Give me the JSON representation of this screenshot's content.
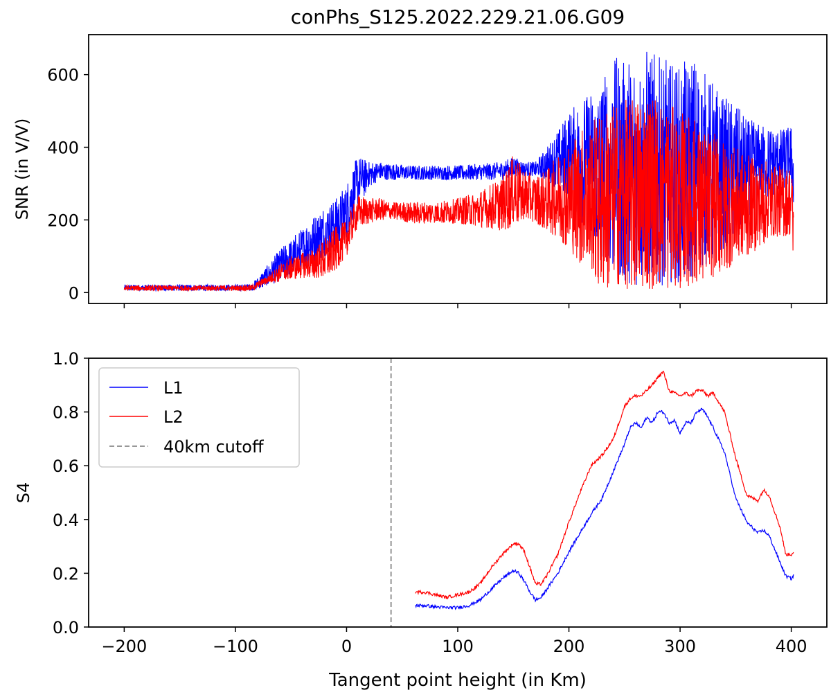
{
  "figure": {
    "title": "conPhs_S125.2022.229.21.06.G09"
  },
  "chart_data": [
    {
      "type": "line",
      "name": "snr-panel",
      "ylabel": "SNR (in V/V)",
      "xlabel": "",
      "xlim": [
        -232,
        432
      ],
      "ylim": [
        -30,
        710
      ],
      "xticks": [
        -200,
        -100,
        0,
        100,
        200,
        300,
        400
      ],
      "show_x_tick_labels": false,
      "yticks": [
        0,
        200,
        400,
        600
      ],
      "ytick_labels": [
        "0",
        "200",
        "400",
        "600"
      ],
      "grid": false,
      "series": [
        {
          "name": "L1",
          "color": "#0000ff",
          "envelope": {
            "x": [
              -200,
              -150,
              -100,
              -85,
              -78,
              -70,
              -60,
              -50,
              -40,
              -30,
              -20,
              -10,
              0,
              10,
              20,
              30,
              40,
              60,
              80,
              100,
              120,
              140,
              150,
              160,
              170,
              180,
              190,
              200,
              210,
              220,
              230,
              240,
              250,
              260,
              270,
              280,
              290,
              300,
              310,
              320,
              330,
              340,
              350,
              360,
              370,
              380,
              390,
              400,
              402
            ],
            "low": [
              5,
              5,
              5,
              5,
              10,
              20,
              30,
              40,
              60,
              80,
              100,
              120,
              150,
              230,
              290,
              310,
              310,
              310,
              310,
              310,
              310,
              310,
              320,
              320,
              320,
              310,
              280,
              250,
              200,
              150,
              100,
              60,
              30,
              20,
              20,
              20,
              20,
              30,
              40,
              60,
              80,
              120,
              160,
              200,
              240,
              260,
              280,
              300,
              200
            ],
            "high": [
              22,
              22,
              22,
              25,
              50,
              80,
              120,
              150,
              180,
              210,
              240,
              260,
              300,
              380,
              360,
              360,
              355,
              350,
              350,
              350,
              355,
              360,
              375,
              360,
              360,
              400,
              450,
              500,
              530,
              560,
              600,
              650,
              640,
              660,
              680,
              650,
              640,
              620,
              660,
              620,
              580,
              540,
              520,
              480,
              470,
              460,
              450,
              460,
              400
            ]
          }
        },
        {
          "name": "L2",
          "color": "#ff0000",
          "envelope": {
            "x": [
              -200,
              -150,
              -100,
              -85,
              -78,
              -70,
              -60,
              -50,
              -40,
              -30,
              -20,
              -10,
              0,
              10,
              20,
              30,
              40,
              60,
              80,
              100,
              120,
              140,
              150,
              160,
              170,
              180,
              190,
              200,
              210,
              220,
              230,
              240,
              250,
              260,
              270,
              280,
              290,
              300,
              310,
              320,
              330,
              340,
              350,
              360,
              370,
              380,
              390,
              400,
              402
            ],
            "low": [
              5,
              5,
              5,
              5,
              15,
              25,
              30,
              35,
              40,
              40,
              40,
              60,
              100,
              180,
              190,
              200,
              200,
              190,
              190,
              190,
              180,
              170,
              180,
              200,
              190,
              170,
              150,
              120,
              80,
              40,
              10,
              10,
              10,
              10,
              10,
              10,
              10,
              10,
              20,
              30,
              40,
              60,
              80,
              100,
              120,
              140,
              150,
              160,
              60
            ],
            "high": [
              20,
              20,
              20,
              22,
              35,
              50,
              80,
              100,
              110,
              120,
              150,
              180,
              200,
              270,
              260,
              260,
              250,
              250,
              250,
              260,
              280,
              320,
              380,
              340,
              320,
              340,
              380,
              420,
              450,
              480,
              500,
              520,
              530,
              540,
              560,
              540,
              520,
              500,
              490,
              460,
              440,
              420,
              400,
              380,
              370,
              360,
              350,
              350,
              300
            ]
          }
        }
      ]
    },
    {
      "type": "line",
      "name": "s4-panel",
      "ylabel": "S4",
      "xlabel": "Tangent point height (in Km)",
      "xlim": [
        -232,
        432
      ],
      "ylim": [
        0.0,
        1.0
      ],
      "xticks": [
        -200,
        -100,
        0,
        100,
        200,
        300,
        400
      ],
      "xtick_labels": [
        "−200",
        "−100",
        "0",
        "100",
        "200",
        "300",
        "400"
      ],
      "yticks": [
        0.0,
        0.2,
        0.4,
        0.6,
        0.8,
        1.0
      ],
      "ytick_labels": [
        "0.0",
        "0.2",
        "0.4",
        "0.6",
        "0.8",
        "1.0"
      ],
      "grid": false,
      "legend": {
        "placement": "top-left",
        "entries": [
          "L1",
          "L2",
          "40km cutoff"
        ]
      },
      "vline": {
        "x": 40,
        "label": "40km cutoff",
        "color": "#777777",
        "style": "dashed"
      },
      "series": [
        {
          "name": "L1",
          "color": "#0000ff",
          "x": [
            62,
            70,
            80,
            90,
            100,
            110,
            120,
            130,
            140,
            150,
            155,
            160,
            165,
            170,
            175,
            180,
            190,
            200,
            210,
            220,
            230,
            240,
            250,
            255,
            260,
            265,
            270,
            275,
            280,
            285,
            290,
            295,
            300,
            305,
            310,
            315,
            320,
            325,
            330,
            340,
            350,
            360,
            370,
            375,
            380,
            390,
            395,
            400,
            402
          ],
          "y": [
            0.08,
            0.08,
            0.075,
            0.072,
            0.072,
            0.08,
            0.1,
            0.14,
            0.18,
            0.21,
            0.2,
            0.17,
            0.13,
            0.1,
            0.11,
            0.14,
            0.2,
            0.28,
            0.35,
            0.42,
            0.48,
            0.58,
            0.68,
            0.74,
            0.76,
            0.74,
            0.78,
            0.76,
            0.8,
            0.8,
            0.76,
            0.77,
            0.72,
            0.76,
            0.76,
            0.8,
            0.81,
            0.78,
            0.74,
            0.65,
            0.48,
            0.39,
            0.35,
            0.36,
            0.34,
            0.24,
            0.19,
            0.18,
            0.19
          ]
        },
        {
          "name": "L2",
          "color": "#ff0000",
          "x": [
            62,
            70,
            80,
            90,
            100,
            110,
            120,
            130,
            140,
            150,
            155,
            160,
            165,
            170,
            175,
            180,
            190,
            200,
            210,
            220,
            230,
            240,
            250,
            255,
            260,
            265,
            270,
            275,
            280,
            285,
            290,
            295,
            300,
            305,
            310,
            315,
            320,
            325,
            330,
            340,
            350,
            360,
            370,
            375,
            380,
            390,
            395,
            400,
            402
          ],
          "y": [
            0.13,
            0.13,
            0.12,
            0.11,
            0.12,
            0.13,
            0.16,
            0.22,
            0.27,
            0.31,
            0.31,
            0.28,
            0.22,
            0.16,
            0.16,
            0.19,
            0.27,
            0.39,
            0.5,
            0.6,
            0.64,
            0.7,
            0.82,
            0.85,
            0.86,
            0.86,
            0.88,
            0.9,
            0.93,
            0.95,
            0.88,
            0.87,
            0.86,
            0.87,
            0.86,
            0.88,
            0.88,
            0.86,
            0.87,
            0.8,
            0.63,
            0.49,
            0.47,
            0.51,
            0.49,
            0.37,
            0.27,
            0.27,
            0.28
          ]
        }
      ]
    }
  ]
}
